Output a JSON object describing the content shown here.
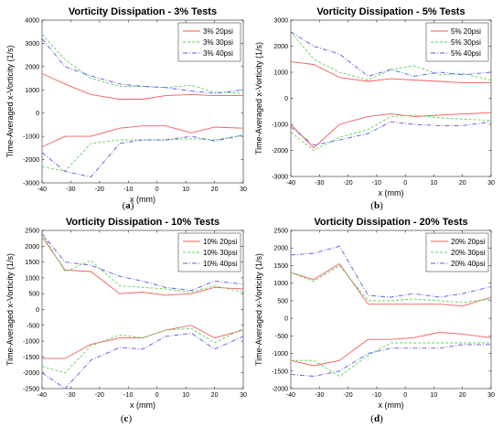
{
  "colors": {
    "20psi": "#f25f5c",
    "30psi": "#5ad45a",
    "40psi": "#5a5ae6"
  },
  "chart_data": [
    {
      "type": "line",
      "title": "Vorticity Dissipation - 3% Tests",
      "caption": "(a)",
      "xlabel": "x (mm)",
      "ylabel": "Time-Averaged x-Vorticity (1/s)",
      "xlim": [
        -40,
        30
      ],
      "ylim": [
        -3000,
        4000
      ],
      "xticks": [
        "-40",
        "-30",
        "-20",
        "-10",
        "0",
        "10",
        "20",
        "30"
      ],
      "yticks": [
        "-3000",
        "-2000",
        "-1000",
        "0",
        "1000",
        "2000",
        "3000",
        "4000"
      ],
      "legend": "top-right",
      "series": [
        {
          "name": "3% 20psi",
          "color": "20psi",
          "dash": "solid",
          "branches": [
            {
              "x": [
                -40,
                -32,
                -23,
                -13,
                -5,
                3,
                12,
                20,
                30
              ],
              "y": [
                1700,
                1250,
                800,
                600,
                600,
                750,
                800,
                750,
                750
              ]
            },
            {
              "x": [
                -40,
                -32,
                -23,
                -13,
                -5,
                3,
                12,
                20,
                30
              ],
              "y": [
                -1450,
                -1000,
                -1000,
                -650,
                -550,
                -550,
                -850,
                -600,
                -650
              ]
            }
          ]
        },
        {
          "name": "3% 30psi",
          "color": "30psi",
          "dash": "dash",
          "branches": [
            {
              "x": [
                -40,
                -32,
                -23,
                -13,
                -5,
                3,
                12,
                20,
                30
              ],
              "y": [
                3400,
                2300,
                1500,
                1150,
                1150,
                1100,
                1200,
                900,
                850
              ]
            },
            {
              "x": [
                -40,
                -32,
                -23,
                -13,
                -5,
                3,
                12,
                20,
                30
              ],
              "y": [
                -2300,
                -2500,
                -1300,
                -1150,
                -1150,
                -1150,
                -1100,
                -1150,
                -950
              ]
            }
          ]
        },
        {
          "name": "3% 40psi",
          "color": "40psi",
          "dash": "dashdot",
          "branches": [
            {
              "x": [
                -40,
                -32,
                -23,
                -13,
                -5,
                3,
                12,
                20,
                30
              ],
              "y": [
                3200,
                2000,
                1600,
                1250,
                1150,
                1100,
                950,
                850,
                1000
              ]
            },
            {
              "x": [
                -40,
                -32,
                -23,
                -13,
                -5,
                3,
                12,
                20,
                30
              ],
              "y": [
                -1700,
                -2500,
                -2750,
                -1300,
                -1150,
                -1150,
                -1000,
                -1200,
                -950
              ]
            }
          ]
        }
      ]
    },
    {
      "type": "line",
      "title": "Vorticity Dissipation - 5% Tests",
      "caption": "(b)",
      "xlabel": "x (mm)",
      "ylabel": "Time-Averaged x-Vorticity (1/s)",
      "xlim": [
        -40,
        30
      ],
      "ylim": [
        -3000,
        3000
      ],
      "xticks": [
        "-40",
        "-30",
        "-20",
        "-10",
        "0",
        "10",
        "20",
        "30"
      ],
      "yticks": [
        "-3000",
        "-2000",
        "-1000",
        "0",
        "1000",
        "2000",
        "3000"
      ],
      "legend": "top-right",
      "series": [
        {
          "name": "5% 20psi",
          "color": "20psi",
          "dash": "solid",
          "branches": [
            {
              "x": [
                -40,
                -32,
                -23,
                -13,
                -5,
                3,
                12,
                20,
                30
              ],
              "y": [
                1400,
                1300,
                800,
                650,
                750,
                700,
                650,
                600,
                600
              ]
            },
            {
              "x": [
                -40,
                -32,
                -23,
                -13,
                -5,
                3,
                12,
                20,
                30
              ],
              "y": [
                -1000,
                -1900,
                -1000,
                -700,
                -600,
                -700,
                -650,
                -600,
                -550
              ]
            }
          ]
        },
        {
          "name": "5% 30psi",
          "color": "30psi",
          "dash": "dash",
          "branches": [
            {
              "x": [
                -40,
                -32,
                -23,
                -13,
                -5,
                3,
                12,
                20,
                30
              ],
              "y": [
                2550,
                1500,
                1000,
                700,
                1100,
                1250,
                900,
                950,
                700
              ]
            },
            {
              "x": [
                -40,
                -32,
                -23,
                -13,
                -5,
                3,
                12,
                20,
                30
              ],
              "y": [
                -1300,
                -2000,
                -1500,
                -1200,
                -700,
                -650,
                -750,
                -800,
                -850
              ]
            }
          ]
        },
        {
          "name": "5% 40psi",
          "color": "40psi",
          "dash": "dashdot",
          "branches": [
            {
              "x": [
                -40,
                -32,
                -23,
                -13,
                -5,
                3,
                12,
                20,
                30
              ],
              "y": [
                2550,
                2000,
                1700,
                850,
                1100,
                850,
                1000,
                900,
                1000
              ]
            },
            {
              "x": [
                -40,
                -32,
                -23,
                -13,
                -5,
                3,
                12,
                20,
                30
              ],
              "y": [
                -1100,
                -1800,
                -1600,
                -1350,
                -900,
                -1000,
                -1050,
                -1050,
                -900
              ]
            }
          ]
        }
      ]
    },
    {
      "type": "line",
      "title": "Vorticity Dissipation - 10% Tests",
      "caption": "(c)",
      "xlabel": "x (mm)",
      "ylabel": "Time-Averaged x-Vorticity (1/s)",
      "xlim": [
        -40,
        30
      ],
      "ylim": [
        -2500,
        2500
      ],
      "xticks": [
        "-40",
        "-30",
        "-20",
        "-10",
        "0",
        "10",
        "20",
        "30"
      ],
      "yticks": [
        "-2500",
        "-2000",
        "-1500",
        "-1000",
        "-500",
        "0",
        "500",
        "1000",
        "1500",
        "2000",
        "2500"
      ],
      "legend": "top-right",
      "series": [
        {
          "name": "10% 20psi",
          "color": "20psi",
          "dash": "solid",
          "branches": [
            {
              "x": [
                -40,
                -32,
                -23,
                -13,
                -5,
                3,
                12,
                20,
                30
              ],
              "y": [
                2300,
                1250,
                1200,
                500,
                550,
                450,
                500,
                700,
                650
              ]
            },
            {
              "x": [
                -40,
                -32,
                -23,
                -13,
                -5,
                3,
                12,
                20,
                30
              ],
              "y": [
                -1550,
                -1550,
                -1100,
                -900,
                -900,
                -650,
                -500,
                -900,
                -650
              ]
            }
          ]
        },
        {
          "name": "10% 30psi",
          "color": "30psi",
          "dash": "dash",
          "branches": [
            {
              "x": [
                -40,
                -32,
                -23,
                -13,
                -5,
                3,
                12,
                20,
                30
              ],
              "y": [
                2400,
                1200,
                1550,
                750,
                700,
                650,
                550,
                750,
                550
              ]
            },
            {
              "x": [
                -40,
                -32,
                -23,
                -13,
                -5,
                3,
                12,
                20,
                30
              ],
              "y": [
                -1800,
                -2000,
                -1150,
                -800,
                -900,
                -650,
                -600,
                -1050,
                -600
              ]
            }
          ]
        },
        {
          "name": "10% 40psi",
          "color": "40psi",
          "dash": "dashdot",
          "branches": [
            {
              "x": [
                -40,
                -32,
                -23,
                -13,
                -5,
                3,
                12,
                20,
                30
              ],
              "y": [
                2400,
                1500,
                1400,
                1050,
                900,
                700,
                600,
                900,
                800
              ]
            },
            {
              "x": [
                -40,
                -32,
                -23,
                -13,
                -5,
                3,
                12,
                20,
                30
              ],
              "y": [
                -2000,
                -2500,
                -1600,
                -1200,
                -1250,
                -850,
                -750,
                -1250,
                -850
              ]
            }
          ]
        }
      ]
    },
    {
      "type": "line",
      "title": "Vorticity Dissipation - 20% Tests",
      "caption": "(d)",
      "xlabel": "x (mm)",
      "ylabel": "Time-Averaged x-Vorticity (1/s)",
      "xlim": [
        -40,
        30
      ],
      "ylim": [
        -2000,
        2500
      ],
      "xticks": [
        "-40",
        "-30",
        "-20",
        "-10",
        "0",
        "10",
        "20",
        "30"
      ],
      "yticks": [
        "-2000",
        "-1500",
        "-1000",
        "-500",
        "0",
        "500",
        "1000",
        "1500",
        "2000",
        "2500"
      ],
      "legend": "top-right",
      "series": [
        {
          "name": "20% 20psi",
          "color": "20psi",
          "dash": "solid",
          "branches": [
            {
              "x": [
                -40,
                -32,
                -23,
                -13,
                -5,
                3,
                12,
                20,
                30
              ],
              "y": [
                1300,
                1100,
                1550,
                400,
                400,
                400,
                400,
                350,
                600
              ]
            },
            {
              "x": [
                -40,
                -32,
                -23,
                -13,
                -5,
                3,
                12,
                20,
                30
              ],
              "y": [
                -1200,
                -1350,
                -1200,
                -600,
                -600,
                -550,
                -400,
                -450,
                -550
              ]
            }
          ]
        },
        {
          "name": "20% 30psi",
          "color": "30psi",
          "dash": "dash",
          "branches": [
            {
              "x": [
                -40,
                -32,
                -23,
                -13,
                -5,
                3,
                12,
                20,
                30
              ],
              "y": [
                1300,
                1050,
                1500,
                500,
                500,
                550,
                500,
                450,
                550
              ]
            },
            {
              "x": [
                -40,
                -32,
                -23,
                -13,
                -5,
                3,
                12,
                20,
                30
              ],
              "y": [
                -1200,
                -1200,
                -1650,
                -1050,
                -700,
                -700,
                -700,
                -700,
                -700
              ]
            }
          ]
        },
        {
          "name": "20% 40psi",
          "color": "40psi",
          "dash": "dashdot",
          "branches": [
            {
              "x": [
                -40,
                -32,
                -23,
                -13,
                -5,
                3,
                12,
                20,
                30
              ],
              "y": [
                1800,
                1850,
                2050,
                650,
                600,
                700,
                600,
                700,
                900
              ]
            },
            {
              "x": [
                -40,
                -32,
                -23,
                -13,
                -5,
                3,
                12,
                20,
                30
              ],
              "y": [
                -1600,
                -1650,
                -1500,
                -1000,
                -850,
                -850,
                -850,
                -750,
                -750
              ]
            }
          ]
        }
      ]
    }
  ]
}
